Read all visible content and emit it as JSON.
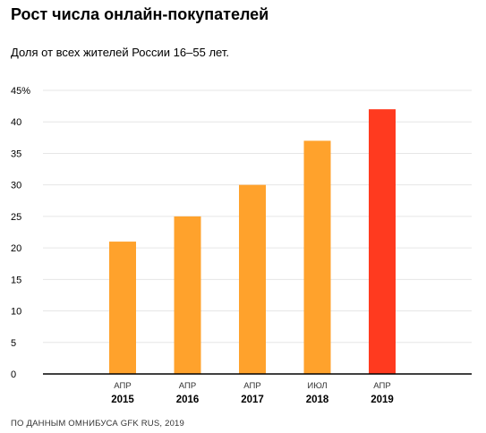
{
  "title": "Рост числа онлайн-покупателей",
  "subtitle": "Доля от всех жителей России 16–55 лет.",
  "source": "ПО ДАННЫМ ОМНИБУСА GFK RUS, 2019",
  "colors": {
    "bar": "#FFA22C",
    "highlight": "#FF3A1F",
    "grid": "#e6e6e6",
    "axis": "#000000"
  },
  "chart_data": {
    "type": "bar",
    "title": "Рост числа онлайн-покупателей",
    "subtitle": "Доля от всех жителей России 16–55 лет.",
    "categories": [
      "АПР 2015",
      "АПР 2016",
      "АПР 2017",
      "ИЮЛ 2018",
      "АПР 2019"
    ],
    "months": [
      "АПР",
      "АПР",
      "АПР",
      "ИЮЛ",
      "АПР"
    ],
    "years": [
      "2015",
      "2016",
      "2017",
      "2018",
      "2019"
    ],
    "values": [
      21,
      25,
      30,
      37,
      42
    ],
    "highlight_index": 4,
    "ylim": [
      0,
      45
    ],
    "yticks": [
      0,
      5,
      10,
      15,
      20,
      25,
      30,
      35,
      40,
      45
    ],
    "ytick_labels": [
      "0",
      "5",
      "10",
      "15",
      "20",
      "25",
      "30",
      "35",
      "40",
      "45%"
    ],
    "grid": true,
    "xlabel": "",
    "ylabel": ""
  }
}
